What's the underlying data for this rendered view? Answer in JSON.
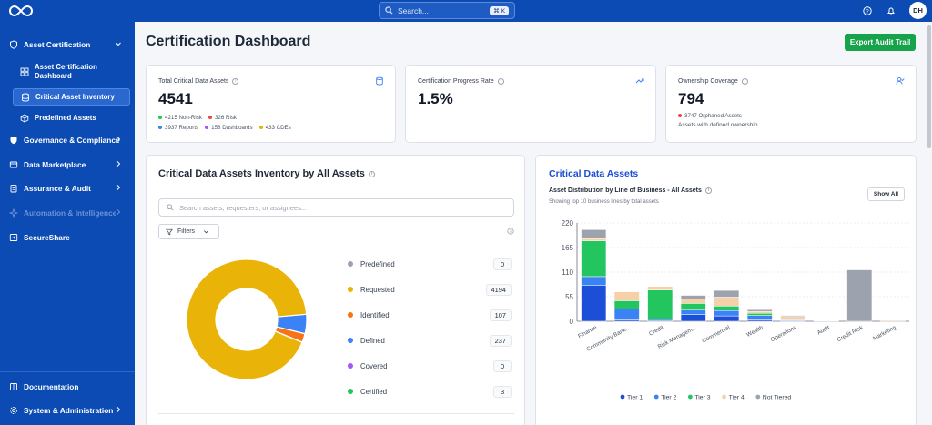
{
  "topbar": {
    "search_placeholder": "Search...",
    "search_shortcut": "⌘ K",
    "avatar_initials": "DH"
  },
  "sidebar": {
    "asset_certification": "Asset Certification",
    "sub_items": [
      "Asset Certification Dashboard",
      "Critical Asset Inventory",
      "Predefined Assets"
    ],
    "governance": "Governance & Compliance",
    "marketplace": "Data Marketplace",
    "assurance": "Assurance & Audit",
    "automation": "Automation & Intelligence",
    "secureshare": "SecureShare",
    "documentation": "Documentation",
    "system": "System & Administration"
  },
  "header": {
    "title": "Certification Dashboard",
    "export_label": "Export Audit Trail"
  },
  "stats": {
    "critical": {
      "label": "Total Critical Data Assets",
      "value": "4541",
      "legend_row1": [
        "4215 Non-Risk",
        "326 Risk"
      ],
      "legend_row2": [
        "3937 Reports",
        "158 Dashboards",
        "433 CDEs"
      ]
    },
    "progress": {
      "label": "Certification Progress Rate",
      "value": "1.5%"
    },
    "ownership": {
      "label": "Ownership Coverage",
      "value": "794",
      "orphaned": "3747 Orphaned Assets",
      "note": "Assets with defined ownership"
    }
  },
  "inventory": {
    "title": "Critical Data Assets Inventory by All Assets",
    "search_placeholder": "Search assets, requesters, or assignees...",
    "filters_label": "Filters",
    "legend": [
      {
        "label": "Predefined",
        "count": "0",
        "color": "#9ca3af"
      },
      {
        "label": "Requested",
        "count": "4194",
        "color": "#eab308"
      },
      {
        "label": "Identified",
        "count": "107",
        "color": "#f97316"
      },
      {
        "label": "Defined",
        "count": "237",
        "color": "#3b82f6"
      },
      {
        "label": "Covered",
        "count": "0",
        "color": "#a855f7"
      },
      {
        "label": "Certified",
        "count": "3",
        "color": "#22c55e"
      }
    ]
  },
  "cda": {
    "title": "Critical Data Assets",
    "subtitle": "Asset Distribution by Line of Business - All Assets",
    "subtitle2": "Showing top 10 business lines by total assets",
    "show_all": "Show All"
  },
  "chart_data": {
    "type": "bar",
    "stacked": true,
    "categories": [
      "Finance",
      "Community Bank...",
      "Credit",
      "Risk Managem...",
      "Commercial",
      "Wealth",
      "Operations",
      "Audit",
      "Credit Risk",
      "Marketing"
    ],
    "ylim": [
      0,
      220
    ],
    "yticks": [
      0,
      55,
      110,
      165,
      220
    ],
    "legend_position": "bottom",
    "series": [
      {
        "name": "Tier 1",
        "color": "#1d4ed8",
        "values": [
          80,
          3,
          2,
          15,
          12,
          3,
          1,
          1,
          0,
          0
        ]
      },
      {
        "name": "Tier 2",
        "color": "#3b82f6",
        "values": [
          20,
          25,
          3,
          10,
          12,
          10,
          2,
          1,
          0,
          0
        ]
      },
      {
        "name": "Tier 3",
        "color": "#22c55e",
        "values": [
          80,
          18,
          65,
          15,
          10,
          5,
          0,
          0,
          0,
          0
        ]
      },
      {
        "name": "Tier 4",
        "color": "#f5d0a9",
        "values": [
          5,
          20,
          8,
          10,
          20,
          4,
          8,
          0,
          0,
          2
        ]
      },
      {
        "name": "Not Tiered",
        "color": "#9ca3af",
        "values": [
          20,
          0,
          0,
          8,
          15,
          4,
          2,
          1,
          115,
          0
        ]
      }
    ]
  }
}
